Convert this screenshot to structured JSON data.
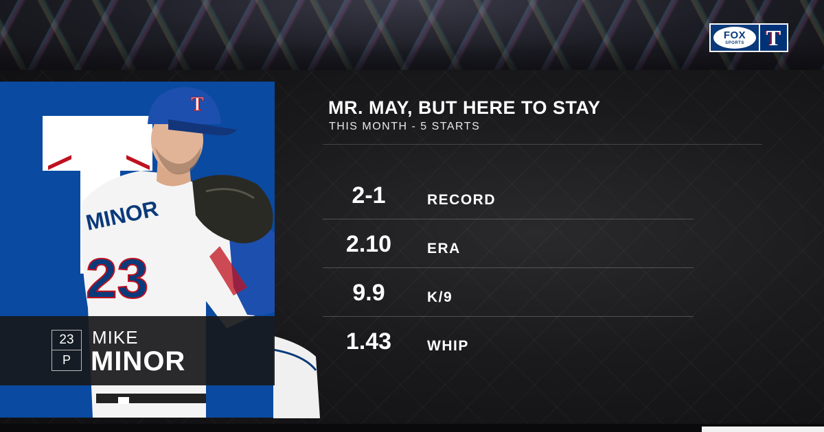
{
  "network": {
    "fox_wordmark": "FOX",
    "fox_sub": "SPORTS",
    "team_logo_letter": "T"
  },
  "graphic": {
    "headline": "MR. MAY, BUT HERE TO STAY",
    "subhead": "THIS MONTH - 5 STARTS"
  },
  "player": {
    "number": "23",
    "position": "P",
    "first_name": "MIKE",
    "last_name": "MINOR",
    "jersey_name": "MINOR",
    "jersey_number": "23"
  },
  "stats": [
    {
      "value": "2-1",
      "label": "RECORD"
    },
    {
      "value": "2.10",
      "label": "ERA"
    },
    {
      "value": "9.9",
      "label": "K/9"
    },
    {
      "value": "1.43",
      "label": "WHIP"
    }
  ],
  "colors": {
    "team_blue": "#003278",
    "team_red": "#c0111f",
    "photo_bg": "#0a4aa0",
    "panel_dark": "#18181a"
  }
}
